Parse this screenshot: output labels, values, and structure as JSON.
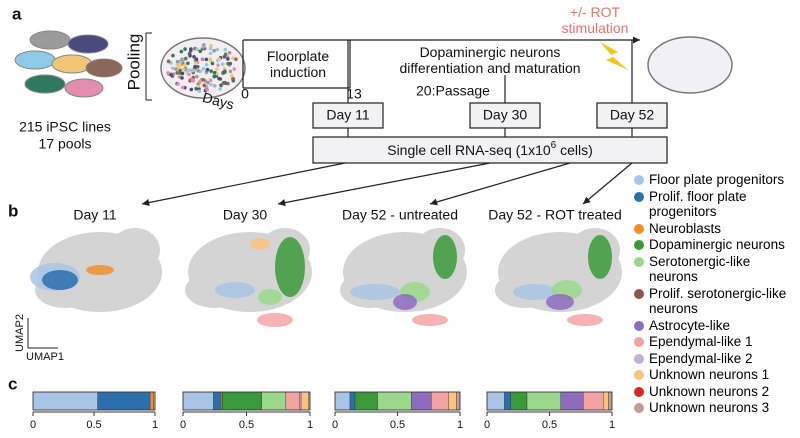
{
  "panel_a": {
    "label": "a",
    "pooling": "Pooling",
    "lines": "215 iPSC lines",
    "pools": "17 pools",
    "days": "Days",
    "day0": "0",
    "day13": "13",
    "passage": "20:Passage",
    "floorplate": "Floorplate induction",
    "differentiation": "Dopaminergic neurons differentiation and maturation",
    "rot": "+/- ROT stimulation",
    "sample_days": [
      "Day 11",
      "Day 30",
      "Day 52"
    ],
    "seq": {
      "text": "Single cell RNA-seq (1x10",
      "sup": "6",
      "tail": " cells)"
    }
  },
  "panel_b": {
    "label": "b",
    "umap1": "UMAP1",
    "umap2": "UMAP2"
  },
  "panel_c": {
    "label": "c"
  },
  "chart_data": {
    "type": "stacked-bar",
    "categories": [
      "Day 11",
      "Day 30",
      "Day 52 - untreated",
      "Day 52 - ROT treated"
    ],
    "xlim": [
      0,
      1
    ],
    "xticks": [
      0,
      0.5,
      1
    ],
    "series": [
      {
        "name": "Floor plate progenitors",
        "color": "#a9c4e4",
        "values": [
          0.53,
          0.24,
          0.12,
          0.14
        ]
      },
      {
        "name": "Prolif. floor plate progenitors",
        "color": "#2c6fad",
        "values": [
          0.43,
          0.06,
          0.04,
          0.05
        ]
      },
      {
        "name": "Neuroblasts",
        "color": "#f28e2b",
        "values": [
          0.03,
          0.01,
          0,
          0
        ]
      },
      {
        "name": "Dopaminergic neurons",
        "color": "#3a9a3a",
        "values": [
          0,
          0.31,
          0.18,
          0.13
        ]
      },
      {
        "name": "Serotonergic-like neurons",
        "color": "#9bd88c",
        "values": [
          0,
          0.19,
          0.27,
          0.27
        ]
      },
      {
        "name": "Prolif. serotonergic-like neurons",
        "color": "#8c564b",
        "values": [
          0,
          0,
          0,
          0
        ]
      },
      {
        "name": "Astrocyte-like",
        "color": "#8e6bbf",
        "values": [
          0,
          0,
          0.16,
          0.18
        ]
      },
      {
        "name": "Ependymal-like 1",
        "color": "#f4a3a5",
        "values": [
          0,
          0.11,
          0.14,
          0.16
        ]
      },
      {
        "name": "Ependymal-like 2",
        "color": "#c5b0d5",
        "values": [
          0,
          0.01,
          0,
          0
        ]
      },
      {
        "name": "Unknown neurons 1",
        "color": "#f9c37f",
        "values": [
          0.01,
          0.06,
          0.06,
          0.04
        ]
      },
      {
        "name": "Unknown neurons 2",
        "color": "#d62728",
        "values": [
          0,
          0,
          0,
          0
        ]
      },
      {
        "name": "Unknown neurons 3",
        "color": "#c49c94",
        "values": [
          0,
          0.01,
          0.03,
          0.03
        ]
      }
    ]
  }
}
